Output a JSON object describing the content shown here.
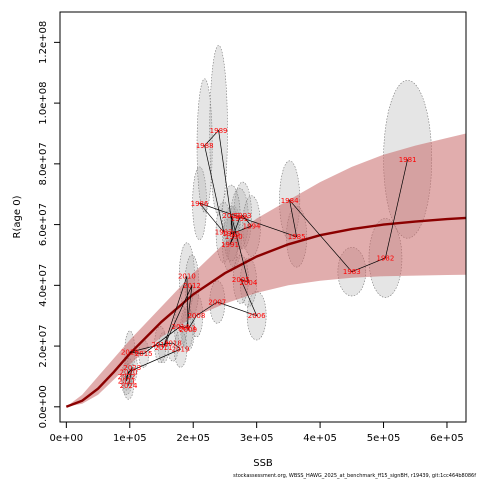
{
  "chart_data": {
    "type": "scatter",
    "xlabel": "SSB",
    "ylabel": "R(age 0)",
    "xlim": [
      -10000,
      630000
    ],
    "ylim": [
      -5000000,
      130000000
    ],
    "x_ticks": [
      {
        "value": 0,
        "label": "0e+00"
      },
      {
        "value": 100000,
        "label": "1e+05"
      },
      {
        "value": 200000,
        "label": "2e+05"
      },
      {
        "value": 300000,
        "label": "3e+05"
      },
      {
        "value": 400000,
        "label": "4e+05"
      },
      {
        "value": 500000,
        "label": "5e+05"
      },
      {
        "value": 600000,
        "label": "6e+05"
      }
    ],
    "y_ticks": [
      {
        "value": 0,
        "label": "0.0e+00"
      },
      {
        "value": 20000000,
        "label": "2.0e+07"
      },
      {
        "value": 40000000,
        "label": "4.0e+07"
      },
      {
        "value": 60000000,
        "label": "6.0e+07"
      },
      {
        "value": 80000000,
        "label": "8.0e+07"
      },
      {
        "value": 100000000,
        "label": "1.0e+08"
      },
      {
        "value": 120000000,
        "label": "1.2e+08"
      }
    ],
    "points": [
      {
        "year": "1981",
        "x": 538000,
        "y": 81500000,
        "sx": 38000,
        "sy": 26000000
      },
      {
        "year": "1982",
        "x": 503000,
        "y": 49000000,
        "sx": 26000,
        "sy": 13000000
      },
      {
        "year": "1983",
        "x": 450000,
        "y": 44500000,
        "sx": 22000,
        "sy": 8000000
      },
      {
        "year": "1984",
        "x": 352000,
        "y": 68000000,
        "sx": 16000,
        "sy": 13000000
      },
      {
        "year": "1985",
        "x": 363000,
        "y": 56000000,
        "sx": 16000,
        "sy": 10000000
      },
      {
        "year": "1986",
        "x": 210000,
        "y": 67000000,
        "sx": 11000,
        "sy": 12000000
      },
      {
        "year": "1987",
        "x": 248000,
        "y": 57500000,
        "sx": 12000,
        "sy": 10000000
      },
      {
        "year": "1988",
        "x": 218000,
        "y": 86000000,
        "sx": 12000,
        "sy": 22000000
      },
      {
        "year": "1989",
        "x": 240000,
        "y": 91000000,
        "sx": 14000,
        "sy": 28000000
      },
      {
        "year": "1990",
        "x": 264000,
        "y": 56000000,
        "sx": 12000,
        "sy": 10000000
      },
      {
        "year": "1991",
        "x": 258000,
        "y": 53500000,
        "sx": 12000,
        "sy": 9000000
      },
      {
        "year": "1992",
        "x": 273000,
        "y": 62000000,
        "sx": 14000,
        "sy": 10000000
      },
      {
        "year": "1993",
        "x": 278000,
        "y": 63000000,
        "sx": 14000,
        "sy": 11000000
      },
      {
        "year": "1994",
        "x": 292000,
        "y": 59500000,
        "sx": 14000,
        "sy": 10000000
      },
      {
        "year": "1995",
        "x": 260000,
        "y": 57000000,
        "sx": 12000,
        "sy": 9000000
      },
      {
        "year": "2003",
        "x": 260000,
        "y": 63000000,
        "sx": 14000,
        "sy": 10000000
      },
      {
        "year": "2004",
        "x": 287000,
        "y": 41000000,
        "sx": 13000,
        "sy": 8000000
      },
      {
        "year": "2005",
        "x": 275000,
        "y": 42000000,
        "sx": 12000,
        "sy": 8000000
      },
      {
        "year": "2006",
        "x": 300000,
        "y": 30000000,
        "sx": 15000,
        "sy": 8000000
      },
      {
        "year": "2007",
        "x": 238000,
        "y": 34500000,
        "sx": 12000,
        "sy": 7000000
      },
      {
        "year": "2008",
        "x": 205000,
        "y": 30000000,
        "sx": 10000,
        "sy": 7000000
      },
      {
        "year": "2009",
        "x": 192000,
        "y": 25500000,
        "sx": 10000,
        "sy": 7000000
      },
      {
        "year": "2010",
        "x": 190000,
        "y": 43000000,
        "sx": 12000,
        "sy": 11000000
      },
      {
        "year": "2011",
        "x": 153000,
        "y": 19500000,
        "sx": 8000,
        "sy": 5000000
      },
      {
        "year": "2012",
        "x": 198000,
        "y": 40000000,
        "sx": 11000,
        "sy": 10000000
      },
      {
        "year": "2013",
        "x": 190000,
        "y": 26000000,
        "sx": 10000,
        "sy": 7000000
      },
      {
        "year": "2014",
        "x": 180000,
        "y": 26500000,
        "sx": 10000,
        "sy": 7000000
      },
      {
        "year": "2015",
        "x": 122000,
        "y": 17500000,
        "sx": 8000,
        "sy": 4500000
      },
      {
        "year": "2016",
        "x": 100000,
        "y": 18000000,
        "sx": 8000,
        "sy": 7000000
      },
      {
        "year": "2017",
        "x": 148000,
        "y": 20500000,
        "sx": 9000,
        "sy": 6000000
      },
      {
        "year": "2018",
        "x": 168000,
        "y": 21000000,
        "sx": 9000,
        "sy": 6000000
      },
      {
        "year": "2019",
        "x": 180000,
        "y": 19000000,
        "sx": 10000,
        "sy": 6000000
      },
      {
        "year": "2020",
        "x": 98000,
        "y": 11500000,
        "sx": 8000,
        "sy": 4500000
      },
      {
        "year": "2021",
        "x": 95000,
        "y": 8500000,
        "sx": 8000,
        "sy": 4500000
      },
      {
        "year": "2022",
        "x": 95000,
        "y": 10000000,
        "sx": 8000,
        "sy": 4500000
      },
      {
        "year": "2023",
        "x": 104000,
        "y": 13000000,
        "sx": 8000,
        "sy": 5000000
      },
      {
        "year": "2024",
        "x": 98000,
        "y": 7000000,
        "sx": 8000,
        "sy": 4500000
      }
    ],
    "path_order": [
      "1981",
      "1982",
      "1983",
      "1984",
      "1985",
      "1986",
      "1987",
      "1988",
      "1989",
      "1990",
      "1991",
      "1992",
      "1993",
      "1994",
      "1995",
      "2003",
      "2004",
      "2005",
      "2006",
      "2007",
      "2008",
      "2009",
      "2010",
      "2011",
      "2012",
      "2013",
      "2014",
      "2015",
      "2016",
      "2017",
      "2018",
      "2019",
      "2020",
      "2021",
      "2022",
      "2023",
      "2024"
    ],
    "fit_curve": [
      [
        0,
        0
      ],
      [
        25000,
        2000000
      ],
      [
        50000,
        6000000
      ],
      [
        75000,
        11500000
      ],
      [
        100000,
        17500000
      ],
      [
        150000,
        28000000
      ],
      [
        200000,
        37000000
      ],
      [
        250000,
        44000000
      ],
      [
        300000,
        49500000
      ],
      [
        350000,
        53500000
      ],
      [
        400000,
        56500000
      ],
      [
        450000,
        58500000
      ],
      [
        500000,
        60000000
      ],
      [
        550000,
        61000000
      ],
      [
        600000,
        61800000
      ],
      [
        630000,
        62200000
      ]
    ],
    "fit_band": {
      "upper": [
        [
          0,
          0
        ],
        [
          25000,
          4000000
        ],
        [
          50000,
          10000000
        ],
        [
          100000,
          22000000
        ],
        [
          150000,
          33000000
        ],
        [
          200000,
          44000000
        ],
        [
          250000,
          54000000
        ],
        [
          300000,
          62000000
        ],
        [
          350000,
          68000000
        ],
        [
          400000,
          74000000
        ],
        [
          450000,
          79000000
        ],
        [
          500000,
          83000000
        ],
        [
          550000,
          86000000
        ],
        [
          600000,
          88500000
        ],
        [
          630000,
          90000000
        ]
      ],
      "lower": [
        [
          630000,
          43500000
        ],
        [
          600000,
          43400000
        ],
        [
          550000,
          43200000
        ],
        [
          500000,
          43000000
        ],
        [
          450000,
          42500000
        ],
        [
          400000,
          41500000
        ],
        [
          350000,
          40000000
        ],
        [
          300000,
          37500000
        ],
        [
          250000,
          34000000
        ],
        [
          200000,
          29500000
        ],
        [
          150000,
          23000000
        ],
        [
          100000,
          14000000
        ],
        [
          50000,
          4000000
        ],
        [
          25000,
          1000000
        ],
        [
          0,
          0
        ]
      ]
    },
    "colors": {
      "fit_line": "#8b0000",
      "fit_band": "#c96a6a",
      "ellipse": "#a8a8a8",
      "labels": "#ff0000",
      "path": "#000000"
    },
    "footer": "stockassessment.org, WBSS_HAWG_2025_at_benchmark_ff15_signBH, r19439, git:1cc464b8086f"
  }
}
